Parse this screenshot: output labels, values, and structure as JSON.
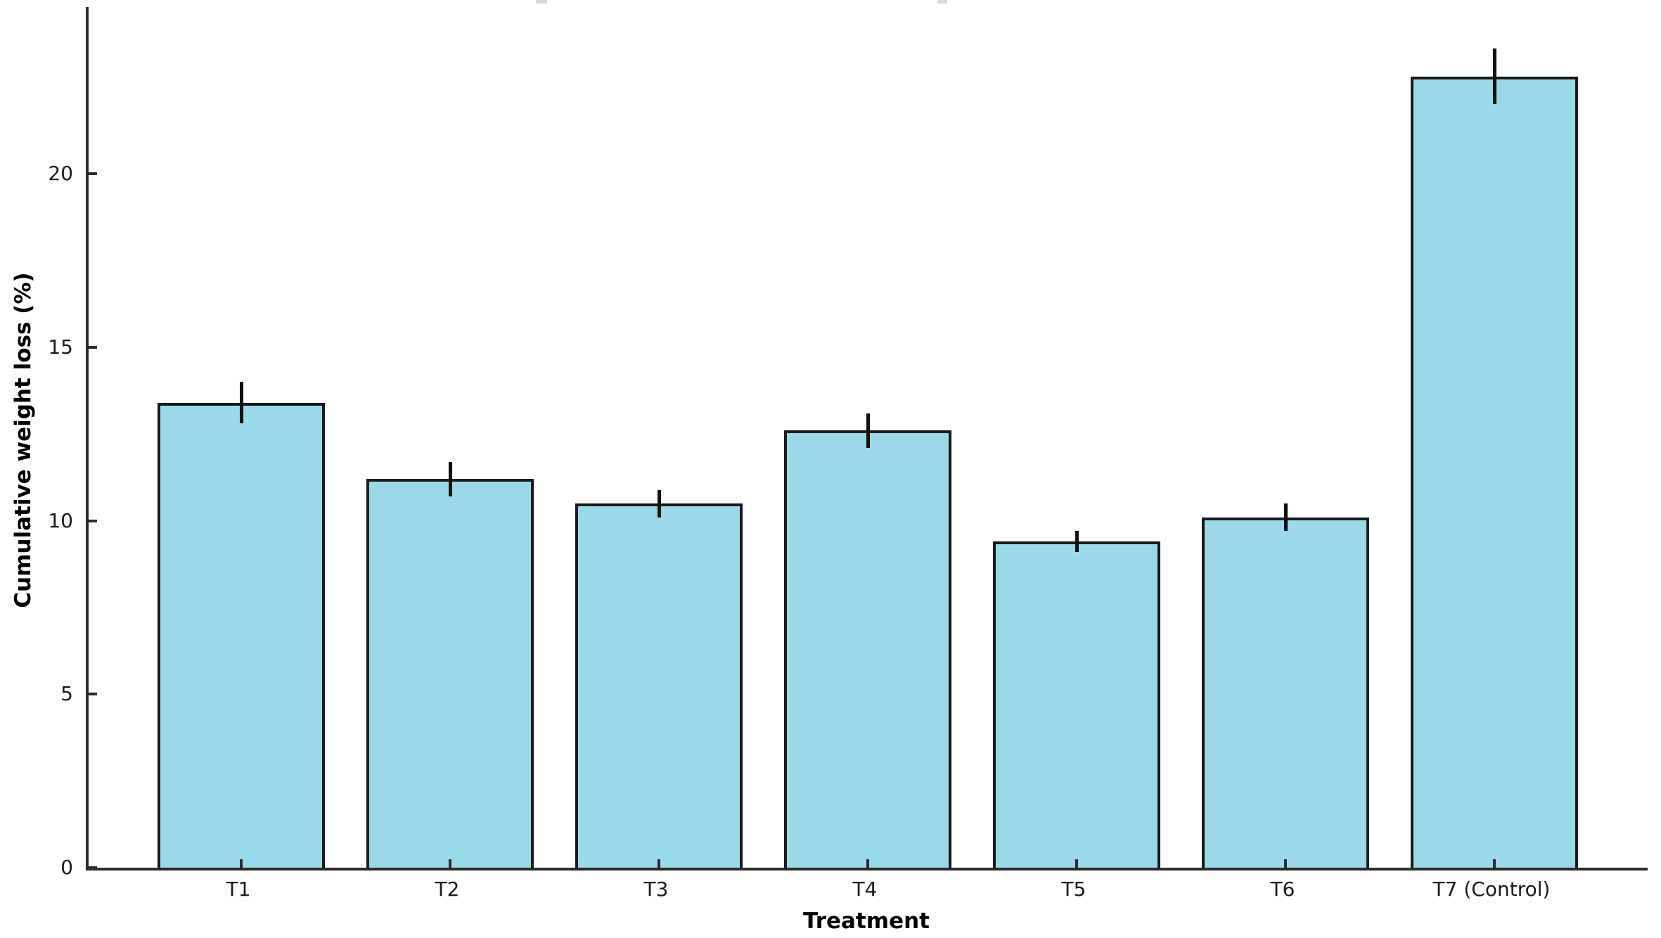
{
  "chart_data": {
    "type": "bar",
    "title": "",
    "categories": [
      "T1",
      "T2",
      "T3",
      "T4",
      "T5",
      "T6",
      "T7 (Control)"
    ],
    "values": [
      13.4,
      11.2,
      10.5,
      12.6,
      9.4,
      10.1,
      22.8
    ],
    "errors": [
      0.6,
      0.5,
      0.4,
      0.5,
      0.3,
      0.4,
      0.8
    ],
    "xlabel": "Treatment",
    "ylabel": "Cumulative weight loss (%)",
    "ylim": [
      0,
      24.8
    ],
    "yticks": [
      0,
      5,
      10,
      15,
      20
    ],
    "grid": false,
    "legend_position": "none",
    "bar_color": "#9ad9e9",
    "bar_edge_color": "#1a1a1a",
    "error_color": "#111111",
    "axis_color": "#2b2b2b",
    "tick_direction": "in"
  }
}
